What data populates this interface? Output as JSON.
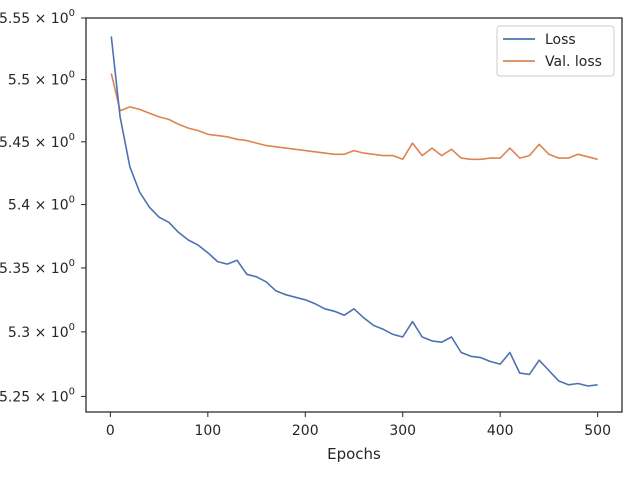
{
  "chart_data": {
    "type": "line",
    "title": "",
    "xlabel": "Epochs",
    "ylabel": "",
    "xlim": [
      -25,
      525
    ],
    "ylim": [
      5.238,
      5.55
    ],
    "y_scale": "log",
    "grid": false,
    "legend_position": "top-right",
    "x_ticks": [
      0,
      100,
      200,
      300,
      400,
      500
    ],
    "x_tick_labels": [
      "0",
      "100",
      "200",
      "300",
      "400",
      "500"
    ],
    "y_ticks": [
      5.25,
      5.3,
      5.35,
      5.4,
      5.45,
      5.5,
      5.55
    ],
    "y_tick_mantissas": [
      "5.25",
      "5.3",
      "5.35",
      "5.4",
      "5.45",
      "5.5",
      "5.55"
    ],
    "y_tick_exponent": "0",
    "x": [
      1,
      10,
      20,
      30,
      40,
      50,
      60,
      70,
      80,
      90,
      100,
      110,
      120,
      130,
      140,
      150,
      160,
      170,
      180,
      190,
      200,
      210,
      220,
      230,
      240,
      250,
      260,
      270,
      280,
      290,
      300,
      310,
      320,
      330,
      340,
      350,
      360,
      370,
      380,
      390,
      400,
      410,
      420,
      430,
      440,
      450,
      460,
      470,
      480,
      490,
      500
    ],
    "series": [
      {
        "name": "Loss",
        "color": "#4c72b0",
        "values": [
          5.535,
          5.47,
          5.43,
          5.41,
          5.398,
          5.39,
          5.386,
          5.378,
          5.372,
          5.368,
          5.362,
          5.355,
          5.353,
          5.356,
          5.345,
          5.343,
          5.339,
          5.332,
          5.329,
          5.327,
          5.325,
          5.322,
          5.318,
          5.316,
          5.313,
          5.318,
          5.311,
          5.305,
          5.302,
          5.298,
          5.296,
          5.308,
          5.296,
          5.293,
          5.292,
          5.296,
          5.284,
          5.281,
          5.28,
          5.277,
          5.275,
          5.284,
          5.268,
          5.267,
          5.278,
          5.27,
          5.262,
          5.259,
          5.26,
          5.258,
          5.259
        ]
      },
      {
        "name": "Val. loss",
        "color": "#dd8452",
        "values": [
          5.505,
          5.475,
          5.478,
          5.476,
          5.473,
          5.47,
          5.468,
          5.464,
          5.461,
          5.459,
          5.456,
          5.455,
          5.454,
          5.452,
          5.451,
          5.449,
          5.447,
          5.446,
          5.445,
          5.444,
          5.443,
          5.442,
          5.441,
          5.44,
          5.44,
          5.443,
          5.441,
          5.44,
          5.439,
          5.439,
          5.436,
          5.449,
          5.439,
          5.445,
          5.439,
          5.444,
          5.437,
          5.436,
          5.436,
          5.437,
          5.437,
          5.445,
          5.437,
          5.439,
          5.448,
          5.44,
          5.437,
          5.437,
          5.44,
          5.438,
          5.436
        ]
      }
    ]
  }
}
